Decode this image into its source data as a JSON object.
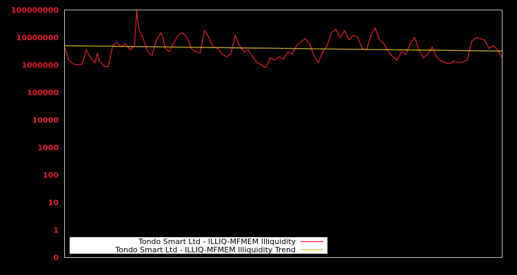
{
  "chart_data": {
    "type": "line",
    "title": "",
    "xlabel": "",
    "ylabel": "",
    "yscale": "log",
    "ylim": [
      0,
      100000000
    ],
    "y_ticks": [
      "100000000",
      "10000000",
      "1000000",
      "100000",
      "10000",
      "1000",
      "100",
      "10",
      "1",
      "0"
    ],
    "grid": false,
    "legend_position": "lower-left",
    "colors": {
      "background": "#000000",
      "frame": "#c8c8c8",
      "tick_label": "#e0202a"
    },
    "series": [
      {
        "name": "Tondo Smart Ltd - ILLIQ-MFMEM Illiquidity",
        "color": "#dc1e28",
        "x_fraction": [
          0.0,
          0.01,
          0.02,
          0.03,
          0.04,
          0.05,
          0.06,
          0.07,
          0.075,
          0.08,
          0.09,
          0.1,
          0.105,
          0.11,
          0.12,
          0.13,
          0.14,
          0.15,
          0.16,
          0.165,
          0.17,
          0.18,
          0.19,
          0.2,
          0.21,
          0.22,
          0.225,
          0.23,
          0.24,
          0.25,
          0.26,
          0.27,
          0.28,
          0.29,
          0.3,
          0.31,
          0.32,
          0.33,
          0.34,
          0.35,
          0.36,
          0.37,
          0.38,
          0.39,
          0.4,
          0.41,
          0.42,
          0.43,
          0.44,
          0.45,
          0.46,
          0.47,
          0.48,
          0.49,
          0.5,
          0.51,
          0.52,
          0.53,
          0.54,
          0.55,
          0.56,
          0.57,
          0.58,
          0.59,
          0.6,
          0.61,
          0.62,
          0.63,
          0.64,
          0.65,
          0.66,
          0.67,
          0.68,
          0.69,
          0.7,
          0.71,
          0.72,
          0.73,
          0.74,
          0.75,
          0.76,
          0.77,
          0.78,
          0.79,
          0.8,
          0.81,
          0.82,
          0.83,
          0.84,
          0.85,
          0.86,
          0.87,
          0.88,
          0.89,
          0.9,
          0.91,
          0.92,
          0.93,
          0.94,
          0.95,
          0.96,
          0.97,
          0.98,
          0.99,
          1.0
        ],
        "values": [
          4500000,
          1500000,
          1100000,
          1000000,
          1050000,
          3500000,
          1800000,
          1200000,
          2700000,
          1400000,
          900000,
          850000,
          1900000,
          5000000,
          6500000,
          4500000,
          6000000,
          3500000,
          5000000,
          95000000,
          20000000,
          9000000,
          3000000,
          2200000,
          8000000,
          15000000,
          10000000,
          4000000,
          3000000,
          6500000,
          12000000,
          15000000,
          10000000,
          4000000,
          3000000,
          2800000,
          18000000,
          10000000,
          4500000,
          4000000,
          2500000,
          2000000,
          2500000,
          12000000,
          5000000,
          3000000,
          3500000,
          2000000,
          1200000,
          1000000,
          800000,
          1800000,
          1500000,
          2000000,
          1600000,
          3000000,
          2500000,
          5000000,
          7000000,
          9000000,
          6000000,
          2200000,
          1200000,
          3000000,
          5000000,
          15000000,
          20000000,
          10000000,
          18000000,
          8000000,
          12000000,
          10000000,
          4000000,
          3500000,
          12000000,
          22000000,
          8000000,
          6000000,
          3000000,
          2000000,
          1500000,
          3000000,
          2500000,
          6000000,
          10000000,
          3500000,
          1800000,
          2500000,
          4500000,
          2000000,
          1400000,
          1200000,
          1100000,
          1400000,
          1200000,
          1300000,
          1500000,
          7000000,
          10000000,
          9000000,
          8000000,
          4000000,
          5000000,
          3500000,
          1800000,
          700000
        ]
      },
      {
        "name": "Tondo Smart Ltd - ILLIQ-MFMEM Illiquidity Trend",
        "color": "#d4b030",
        "x_fraction": [
          0.0,
          1.0
        ],
        "values": [
          5000000,
          3200000
        ]
      }
    ]
  },
  "legend": {
    "items": [
      {
        "label": "Tondo Smart Ltd - ILLIQ-MFMEM Illiquidity",
        "color": "#dc1e28"
      },
      {
        "label": "Tondo Smart Ltd - ILLIQ-MFMEM Illiquidity Trend",
        "color": "#d4b030"
      }
    ]
  }
}
